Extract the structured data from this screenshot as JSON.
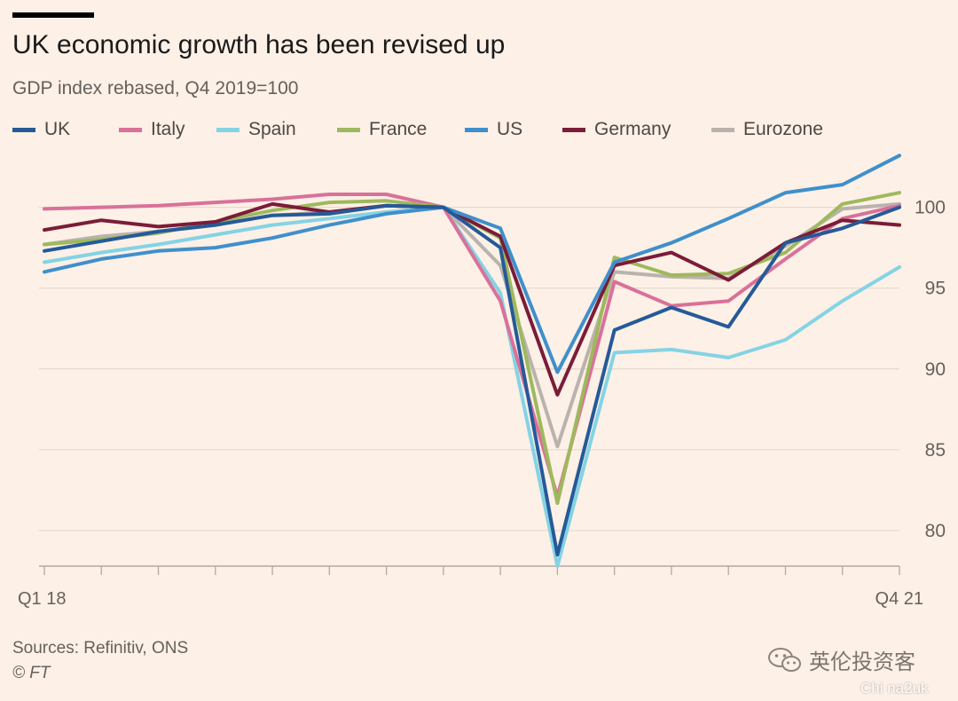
{
  "header": {
    "title": "UK economic growth has been revised up",
    "subtitle": "GDP index rebased, Q4 2019=100"
  },
  "footer": {
    "sources": "Sources: Refinitiv, ONS",
    "copyright": "© FT"
  },
  "watermark": {
    "text": "英伦投资客",
    "text2": "Chi na2uk"
  },
  "chart_data": {
    "type": "line",
    "title": "UK economic growth has been revised up",
    "subtitle": "GDP index rebased, Q4 2019=100",
    "xlabel": "",
    "ylabel": "",
    "x_tick_labels": [
      "Q1 18",
      "Q4 21"
    ],
    "x": [
      "Q1 18",
      "Q2 18",
      "Q3 18",
      "Q4 18",
      "Q1 19",
      "Q2 19",
      "Q3 19",
      "Q4 19",
      "Q1 20",
      "Q2 20",
      "Q3 20",
      "Q4 20",
      "Q1 21",
      "Q2 21",
      "Q3 21",
      "Q4 21"
    ],
    "y_ticks": [
      80,
      85,
      90,
      95,
      100
    ],
    "ylim": [
      77.8,
      103.6
    ],
    "grid": true,
    "y_axis_position": "right",
    "legend_position": "top",
    "series": [
      {
        "name": "UK",
        "color": "#255a99",
        "values": [
          97.3,
          97.9,
          98.5,
          98.9,
          99.5,
          99.6,
          100.1,
          100,
          97.5,
          78.5,
          92.4,
          93.8,
          92.6,
          97.8,
          98.7,
          100
        ]
      },
      {
        "name": "Italy",
        "color": "#d9719a",
        "values": [
          99.9,
          100,
          100.1,
          100.3,
          100.5,
          100.8,
          100.8,
          100,
          94.2,
          82.1,
          95.4,
          93.9,
          94.2,
          96.8,
          99.3,
          100.1
        ]
      },
      {
        "name": "Spain",
        "color": "#84d3e4",
        "values": [
          96.6,
          97.2,
          97.7,
          98.3,
          98.9,
          99.3,
          99.7,
          100,
          94.7,
          77.8,
          91,
          91.2,
          90.7,
          91.8,
          94.2,
          96.3
        ]
      },
      {
        "name": "France",
        "color": "#9eb95d",
        "values": [
          97.7,
          98,
          98.4,
          99.1,
          99.8,
          100.3,
          100.4,
          100,
          98.1,
          81.7,
          96.9,
          95.8,
          95.9,
          97.2,
          100.2,
          100.9
        ]
      },
      {
        "name": "US",
        "color": "#3f8fcc",
        "values": [
          96,
          96.8,
          97.3,
          97.5,
          98.1,
          98.9,
          99.6,
          100,
          98.7,
          89.8,
          96.6,
          97.8,
          99.3,
          100.9,
          101.4,
          103.2
        ]
      },
      {
        "name": "Germany",
        "color": "#7b1c38",
        "values": [
          98.6,
          99.2,
          98.8,
          99.1,
          100.2,
          99.7,
          100.1,
          100,
          98.2,
          88.4,
          96.4,
          97.2,
          95.5,
          97.8,
          99.2,
          98.9
        ]
      },
      {
        "name": "Eurozone",
        "color": "#bab3ad",
        "values": [
          97.7,
          98.2,
          98.5,
          98.9,
          99.5,
          99.7,
          100.1,
          100,
          96.4,
          85.2,
          96,
          95.7,
          95.6,
          97.6,
          99.9,
          100.2
        ]
      }
    ]
  }
}
